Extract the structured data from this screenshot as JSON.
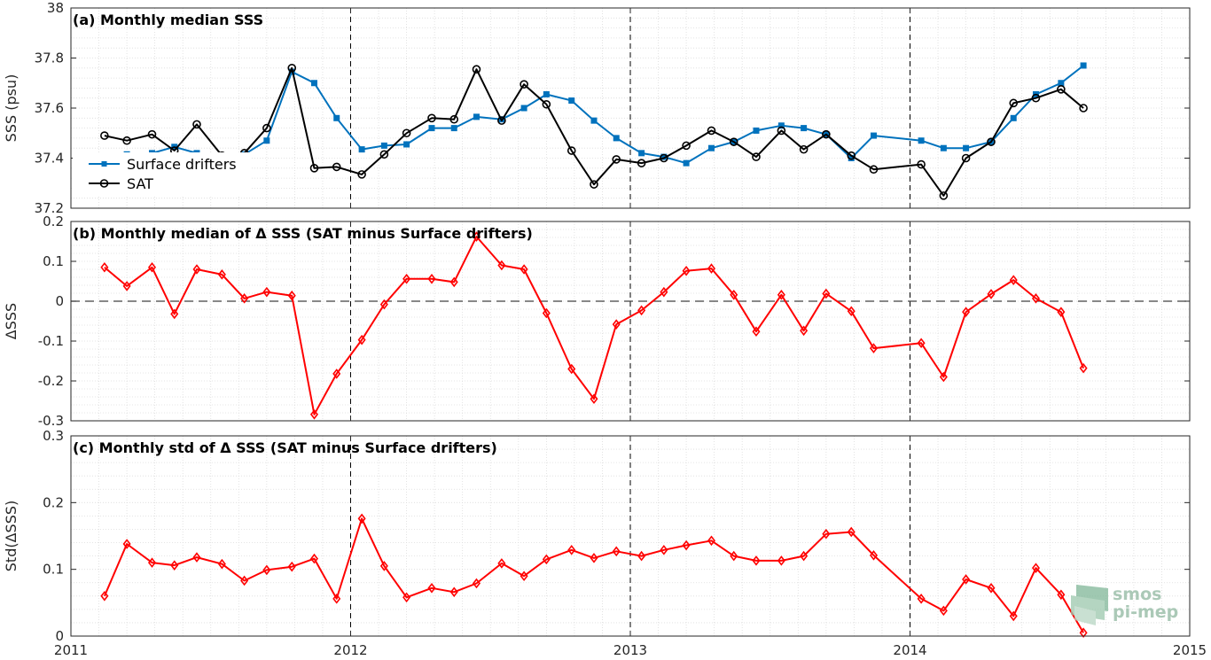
{
  "x_ticks": [
    "2011",
    "2012",
    "2013",
    "2014",
    "2015"
  ],
  "logo": {
    "line1": "smos",
    "line2": "pi-mep",
    "color": "#6fa88a"
  },
  "colors": {
    "drifters": "#0072BD",
    "sat": "#000000",
    "delta": "#ff0000",
    "grid": "#dcdcdc"
  },
  "chart_data": [
    {
      "type": "line",
      "title": "(a) Monthly median SSS",
      "ylabel": "SSS (psu)",
      "xlim": [
        2011,
        2015
      ],
      "ylim": [
        37.2,
        38
      ],
      "yticks": [
        "37.2",
        "37.4",
        "37.6",
        "37.8",
        "38"
      ],
      "grid": true,
      "legend": "middle-left",
      "year_markers": [
        2012,
        2013,
        2014
      ],
      "x": [
        2011.12,
        2011.2,
        2011.29,
        2011.37,
        2011.45,
        2011.54,
        2011.62,
        2011.7,
        2011.79,
        2011.87,
        2011.95,
        2012.04,
        2012.12,
        2012.2,
        2012.29,
        2012.37,
        2012.45,
        2012.54,
        2012.62,
        2012.7,
        2012.79,
        2012.87,
        2012.95,
        2013.04,
        2013.12,
        2013.2,
        2013.29,
        2013.37,
        2013.45,
        2013.54,
        2013.62,
        2013.7,
        2013.79,
        2013.87,
        2014.04,
        2014.12,
        2014.2,
        2014.29,
        2014.37,
        2014.45,
        2014.54,
        2014.62
      ],
      "series": [
        {
          "name": "Surface drifters",
          "marker": "square",
          "values": [
            37.41,
            37.415,
            37.42,
            37.445,
            37.42,
            37.345,
            37.415,
            37.47,
            37.745,
            37.7,
            37.56,
            37.435,
            37.45,
            37.455,
            37.52,
            37.52,
            37.565,
            37.555,
            37.6,
            37.655,
            37.63,
            37.55,
            37.48,
            37.42,
            37.405,
            37.38,
            37.44,
            37.465,
            37.51,
            37.53,
            37.52,
            37.495,
            37.4,
            37.49,
            37.47,
            37.44,
            37.44,
            37.465,
            37.56,
            37.655,
            37.7,
            37.77
          ]
        },
        {
          "name": "SAT",
          "marker": "circle",
          "values": [
            37.49,
            37.47,
            37.495,
            37.43,
            37.535,
            37.41,
            37.42,
            37.52,
            37.76,
            37.36,
            37.365,
            37.335,
            37.415,
            37.5,
            37.56,
            37.555,
            37.755,
            37.55,
            37.695,
            37.615,
            37.43,
            37.295,
            37.395,
            37.38,
            37.4,
            37.45,
            37.51,
            37.465,
            37.405,
            37.51,
            37.435,
            37.495,
            37.41,
            37.355,
            37.375,
            37.25,
            37.4,
            37.465,
            37.62,
            37.64,
            37.675,
            37.6
          ]
        }
      ]
    },
    {
      "type": "line",
      "title": "(b) Monthly median of Δ SSS (SAT minus Surface drifters)",
      "ylabel": "ΔSSS",
      "xlim": [
        2011,
        2015
      ],
      "ylim": [
        -0.3,
        0.2
      ],
      "yticks": [
        "-0.3",
        "-0.2",
        "-0.1",
        "0",
        "0.1",
        "0.2"
      ],
      "grid": true,
      "zero_line": true,
      "year_markers": [
        2012,
        2013,
        2014
      ],
      "x": [
        2011.12,
        2011.2,
        2011.29,
        2011.37,
        2011.45,
        2011.54,
        2011.62,
        2011.7,
        2011.79,
        2011.87,
        2011.95,
        2012.04,
        2012.12,
        2012.2,
        2012.29,
        2012.37,
        2012.45,
        2012.54,
        2012.62,
        2012.7,
        2012.79,
        2012.87,
        2012.95,
        2013.04,
        2013.12,
        2013.2,
        2013.29,
        2013.37,
        2013.45,
        2013.54,
        2013.62,
        2013.7,
        2013.79,
        2013.87,
        2014.04,
        2014.12,
        2014.2,
        2014.29,
        2014.37,
        2014.45,
        2014.54,
        2014.62
      ],
      "series": [
        {
          "marker": "diamond",
          "values": [
            0.085,
            0.038,
            0.085,
            -0.032,
            0.08,
            0.067,
            0.007,
            0.023,
            0.014,
            -0.284,
            -0.182,
            -0.097,
            -0.008,
            0.056,
            0.056,
            0.048,
            0.162,
            0.09,
            0.08,
            -0.03,
            -0.17,
            -0.245,
            -0.058,
            -0.023,
            0.023,
            0.076,
            0.082,
            0.016,
            -0.076,
            0.016,
            -0.074,
            0.019,
            -0.025,
            -0.118,
            -0.105,
            -0.19,
            -0.027,
            0.018,
            0.053,
            0.007,
            -0.027,
            -0.168
          ]
        }
      ]
    },
    {
      "type": "line",
      "title": "(c) Monthly std of Δ SSS (SAT minus Surface drifters)",
      "ylabel": "Std(ΔSSS)",
      "xlim": [
        2011,
        2015
      ],
      "ylim": [
        0,
        0.3
      ],
      "yticks": [
        "0",
        "0.1",
        "0.2",
        "0.3"
      ],
      "grid": true,
      "year_markers": [
        2012,
        2013,
        2014
      ],
      "x": [
        2011.12,
        2011.2,
        2011.29,
        2011.37,
        2011.45,
        2011.54,
        2011.62,
        2011.7,
        2011.79,
        2011.87,
        2011.95,
        2012.04,
        2012.12,
        2012.2,
        2012.29,
        2012.37,
        2012.45,
        2012.54,
        2012.62,
        2012.7,
        2012.79,
        2012.87,
        2012.95,
        2013.04,
        2013.12,
        2013.2,
        2013.29,
        2013.37,
        2013.45,
        2013.54,
        2013.62,
        2013.7,
        2013.79,
        2013.87,
        2014.04,
        2014.12,
        2014.2,
        2014.29,
        2014.37,
        2014.45,
        2014.54,
        2014.62
      ],
      "series": [
        {
          "marker": "diamond",
          "values": [
            0.06,
            0.138,
            0.11,
            0.106,
            0.118,
            0.108,
            0.083,
            0.099,
            0.104,
            0.116,
            0.056,
            0.176,
            0.105,
            0.058,
            0.072,
            0.066,
            0.079,
            0.109,
            0.09,
            0.115,
            0.129,
            0.117,
            0.127,
            0.12,
            0.129,
            0.136,
            0.143,
            0.12,
            0.113,
            0.113,
            0.12,
            0.153,
            0.156,
            0.121,
            0.056,
            0.038,
            0.085,
            0.072,
            0.03,
            0.102,
            0.062,
            0.005
          ]
        }
      ]
    }
  ]
}
